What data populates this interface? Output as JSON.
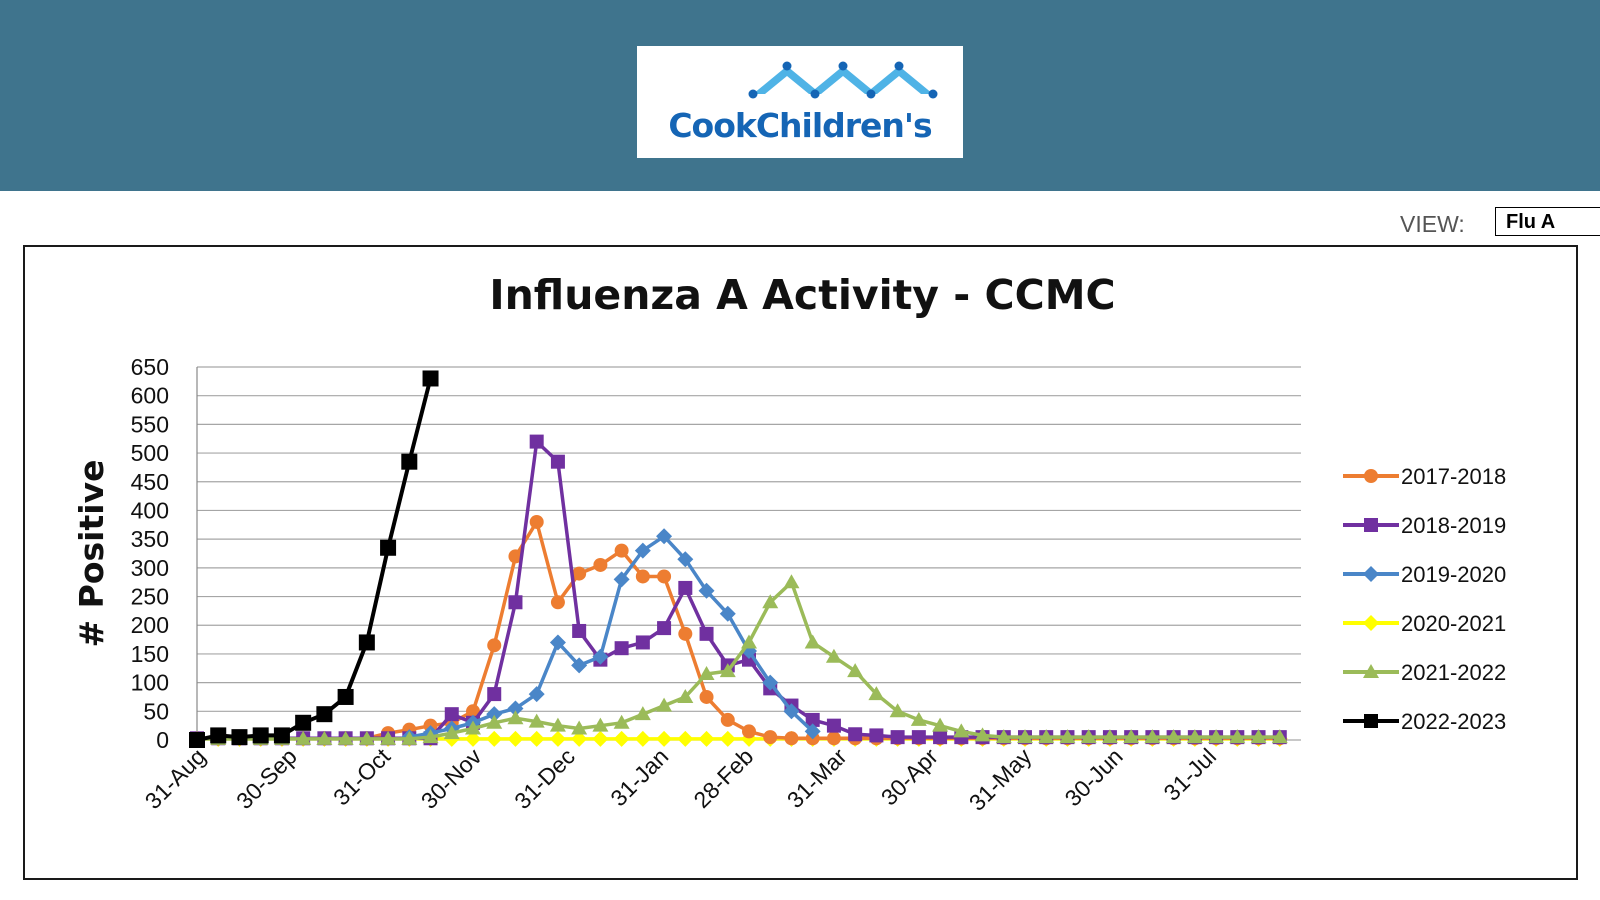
{
  "header": {
    "logo_text": "CookChildren's",
    "logo_color": "#1565b5",
    "logo_accent": "#4fb3e6",
    "band_color": "#3f748d"
  },
  "view": {
    "label": "VIEW:",
    "selected": "Flu A"
  },
  "chart_data": {
    "type": "line",
    "title": "Influenza A Activity - CCMC",
    "ylabel": "# Positive",
    "xlabel": "",
    "ylim": [
      0,
      650
    ],
    "yticks": [
      0,
      50,
      100,
      150,
      200,
      250,
      300,
      350,
      400,
      450,
      500,
      550,
      600,
      650
    ],
    "xticks": [
      "31-Aug",
      "30-Sep",
      "31-Oct",
      "30-Nov",
      "31-Dec",
      "31-Jan",
      "28-Feb",
      "31-Mar",
      "30-Apr",
      "31-May",
      "30-Jun",
      "31-Jul"
    ],
    "x_unit": "week",
    "grid": true,
    "legend_position": "right",
    "series": [
      {
        "name": "2017-2018",
        "color": "#ed7d31",
        "marker": "circle",
        "values": [
          3,
          3,
          3,
          3,
          3,
          3,
          3,
          3,
          3,
          12,
          18,
          25,
          30,
          50,
          165,
          320,
          380,
          240,
          290,
          305,
          330,
          285,
          285,
          185,
          75,
          35,
          15,
          5,
          3,
          3,
          3,
          3,
          3,
          3,
          3,
          3,
          3,
          3,
          3,
          3,
          3,
          3,
          3,
          3,
          3,
          3,
          3,
          3,
          3,
          3,
          3,
          3
        ]
      },
      {
        "name": "2018-2019",
        "color": "#7030a0",
        "marker": "square",
        "values": [
          3,
          3,
          3,
          3,
          3,
          3,
          3,
          3,
          3,
          3,
          3,
          3,
          45,
          30,
          80,
          240,
          520,
          485,
          190,
          140,
          160,
          170,
          195,
          265,
          185,
          130,
          140,
          90,
          60,
          35,
          25,
          10,
          8,
          5,
          5,
          5,
          5,
          5,
          5,
          5,
          5,
          5,
          5,
          5,
          5,
          5,
          5,
          5,
          5,
          5,
          5,
          5
        ]
      },
      {
        "name": "2019-2020",
        "color": "#4a86c8",
        "marker": "diamond",
        "values": [
          null,
          null,
          null,
          null,
          null,
          null,
          null,
          null,
          null,
          null,
          5,
          12,
          20,
          30,
          45,
          55,
          80,
          170,
          130,
          145,
          280,
          330,
          355,
          315,
          260,
          220,
          155,
          100,
          50,
          15,
          null,
          null,
          null,
          null,
          null,
          null,
          null,
          null,
          null,
          null,
          null,
          null,
          null,
          null,
          null,
          null,
          null,
          null,
          null,
          null,
          null,
          null
        ]
      },
      {
        "name": "2020-2021",
        "color": "#ffff00",
        "marker": "diamond",
        "values": [
          2,
          2,
          2,
          2,
          2,
          2,
          2,
          2,
          2,
          2,
          2,
          2,
          2,
          2,
          2,
          2,
          2,
          2,
          2,
          2,
          2,
          2,
          2,
          2,
          2,
          2,
          2,
          2,
          2,
          2,
          2,
          2,
          2,
          2,
          2,
          2,
          2,
          2,
          2,
          2,
          2,
          2,
          2,
          2,
          2,
          2,
          2,
          2,
          2,
          2,
          2,
          2
        ]
      },
      {
        "name": "2021-2022",
        "color": "#9bbb59",
        "marker": "triangle",
        "values": [
          2,
          2,
          2,
          2,
          2,
          2,
          2,
          2,
          2,
          2,
          2,
          5,
          12,
          20,
          30,
          38,
          32,
          25,
          20,
          25,
          30,
          45,
          60,
          75,
          115,
          120,
          170,
          240,
          275,
          170,
          145,
          120,
          80,
          50,
          35,
          25,
          15,
          8,
          5,
          5,
          5,
          5,
          5,
          5,
          5,
          5,
          5,
          5,
          5,
          5,
          5,
          5
        ]
      },
      {
        "name": "2022-2023",
        "color": "#000000",
        "marker": "square",
        "values": [
          0,
          8,
          5,
          8,
          8,
          30,
          45,
          75,
          170,
          335,
          485,
          630
        ]
      }
    ]
  }
}
